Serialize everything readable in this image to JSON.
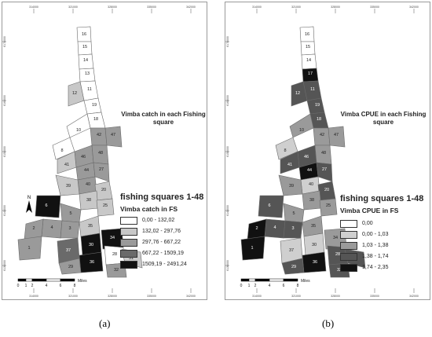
{
  "panels": [
    {
      "id": "a",
      "caption": "(a)",
      "map_title": "Vimba catch in each Fishing square",
      "legend_title": "fishing squares 1-48",
      "legend_subtitle": "Vimba catch in FS",
      "legend": [
        {
          "label": "0,00 - 132,02",
          "color": "#ffffff"
        },
        {
          "label": "132,02 - 297,76",
          "color": "#c8c8c8"
        },
        {
          "label": "297,76 - 667,22",
          "color": "#9a9a9a"
        },
        {
          "label": "667,22 - 1509,19",
          "color": "#6a6a6a"
        },
        {
          "label": "1509,19 - 2491,24",
          "color": "#111111"
        }
      ],
      "top_ticks": [
        "314000",
        "321000",
        "328000",
        "335000",
        "342000"
      ],
      "bottom_ticks": [
        "314000",
        "321000",
        "328000",
        "335000",
        "342000"
      ],
      "left_ticks": [
        "6170000",
        "6160000",
        "6150000",
        "6140000",
        "6130000"
      ],
      "scale_labels": [
        "0",
        "1",
        "2",
        "4",
        "6",
        "8"
      ],
      "scale_unit": "Miles",
      "north_label": "N"
    },
    {
      "id": "b",
      "caption": "(b)",
      "map_title": "Vimba CPUE in each Fishing square",
      "legend_title": "fishing squares 1-48",
      "legend_subtitle": "Vimba CPUE in FS",
      "legend": [
        {
          "label": "0,00",
          "color": "#ffffff"
        },
        {
          "label": "0,00 - 1,03",
          "color": "#cfcfcf"
        },
        {
          "label": "1,03 - 1,38",
          "color": "#9a9a9a"
        },
        {
          "label": "1,38 - 1,74",
          "color": "#555555"
        },
        {
          "label": "1,74 - 2,35",
          "color": "#111111"
        }
      ],
      "top_ticks": [
        "314000",
        "321000",
        "328000",
        "335000",
        "342000"
      ],
      "bottom_ticks": [
        "314000",
        "321000",
        "328000",
        "335000",
        "342000"
      ],
      "left_ticks": [
        "6170000",
        "6160000",
        "6150000",
        "6140000",
        "6130000"
      ],
      "scale_labels": [
        "0",
        "1",
        "2",
        "4",
        "6",
        "8"
      ],
      "scale_unit": "Miles"
    }
  ],
  "squares_a": [
    {
      "n": "16",
      "cls": 0
    },
    {
      "n": "15",
      "cls": 0
    },
    {
      "n": "14",
      "cls": 0
    },
    {
      "n": "13",
      "cls": 0
    },
    {
      "n": "11",
      "cls": 0
    },
    {
      "n": "12",
      "cls": 1
    },
    {
      "n": "19",
      "cls": 0
    },
    {
      "n": "18",
      "cls": 0
    },
    {
      "n": "10",
      "cls": 0
    },
    {
      "n": "42",
      "cls": 2
    },
    {
      "n": "47",
      "cls": 2
    },
    {
      "n": "8",
      "cls": 0
    },
    {
      "n": "46",
      "cls": 2
    },
    {
      "n": "48",
      "cls": 2
    },
    {
      "n": "41",
      "cls": 1
    },
    {
      "n": "44",
      "cls": 2
    },
    {
      "n": "27",
      "cls": 2
    },
    {
      "n": "40",
      "cls": 2
    },
    {
      "n": "39",
      "cls": 1
    },
    {
      "n": "20",
      "cls": 1
    },
    {
      "n": "6",
      "cls": 4
    },
    {
      "n": "38",
      "cls": 1
    },
    {
      "n": "25",
      "cls": 1
    },
    {
      "n": "5",
      "cls": 2
    },
    {
      "n": "4",
      "cls": 2
    },
    {
      "n": "3",
      "cls": 2
    },
    {
      "n": "2",
      "cls": 2
    },
    {
      "n": "35",
      "cls": 1
    },
    {
      "n": "30",
      "cls": 4
    },
    {
      "n": "34",
      "cls": 4
    },
    {
      "n": "1",
      "cls": 2
    },
    {
      "n": "37",
      "cls": 3
    },
    {
      "n": "36",
      "cls": 4
    },
    {
      "n": "29",
      "cls": 2
    },
    {
      "n": "28",
      "cls": 0
    },
    {
      "n": "32",
      "cls": 2
    },
    {
      "n": "31",
      "cls": 1
    }
  ],
  "squares_b": [
    {
      "n": "16",
      "cls": 0
    },
    {
      "n": "15",
      "cls": 0
    },
    {
      "n": "14",
      "cls": 0
    },
    {
      "n": "17",
      "cls": 4
    },
    {
      "n": "11",
      "cls": 3
    },
    {
      "n": "12",
      "cls": 3
    },
    {
      "n": "19",
      "cls": 3
    },
    {
      "n": "18",
      "cls": 3
    },
    {
      "n": "10",
      "cls": 2
    },
    {
      "n": "42",
      "cls": 2
    },
    {
      "n": "47",
      "cls": 2
    },
    {
      "n": "8",
      "cls": 1
    },
    {
      "n": "46",
      "cls": 3
    },
    {
      "n": "48",
      "cls": 2
    },
    {
      "n": "41",
      "cls": 3
    },
    {
      "n": "44",
      "cls": 4
    },
    {
      "n": "27",
      "cls": 3
    },
    {
      "n": "40",
      "cls": 1
    },
    {
      "n": "39",
      "cls": 2
    },
    {
      "n": "20",
      "cls": 3
    },
    {
      "n": "6",
      "cls": 3
    },
    {
      "n": "38",
      "cls": 2
    },
    {
      "n": "25",
      "cls": 2
    },
    {
      "n": "5",
      "cls": 2
    },
    {
      "n": "4",
      "cls": 3
    },
    {
      "n": "3",
      "cls": 3
    },
    {
      "n": "2",
      "cls": 4
    },
    {
      "n": "35",
      "cls": 2
    },
    {
      "n": "30",
      "cls": 1
    },
    {
      "n": "34",
      "cls": 2
    },
    {
      "n": "1",
      "cls": 4
    },
    {
      "n": "37",
      "cls": 1
    },
    {
      "n": "36",
      "cls": 4
    },
    {
      "n": "29",
      "cls": 3
    },
    {
      "n": "28",
      "cls": 3
    },
    {
      "n": "32",
      "cls": 3
    },
    {
      "n": "31",
      "cls": 3
    }
  ]
}
